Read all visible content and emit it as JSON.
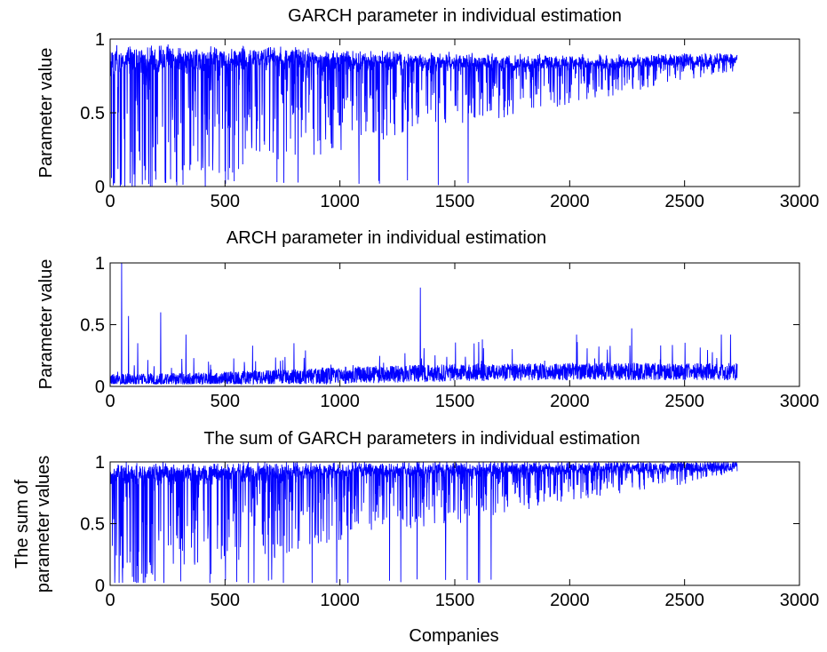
{
  "figure": {
    "line_color": "#0000ff",
    "axis_color": "#000000",
    "background": "#ffffff"
  },
  "chart_data": [
    {
      "type": "line",
      "title": "GARCH parameter in individual estimation",
      "xlabel": "",
      "ylabel_lines": [
        "Parameter value"
      ],
      "xlim": [
        0,
        3000
      ],
      "ylim": [
        0,
        1
      ],
      "x_ticks": [
        0,
        500,
        1000,
        1500,
        2000,
        2500,
        3000
      ],
      "x_tick_labels": [
        "0",
        "500",
        "1000",
        "1500",
        "2000",
        "2500",
        "3000"
      ],
      "y_ticks": [
        0,
        0.5,
        1
      ],
      "y_tick_labels": [
        "0",
        "0.5",
        "1"
      ],
      "grid": false,
      "n_points": 2730,
      "profile": [
        [
          0,
          0.93
        ],
        [
          700,
          0.92
        ],
        [
          1200,
          0.89
        ],
        [
          1800,
          0.86
        ],
        [
          2300,
          0.86
        ],
        [
          2730,
          0.87
        ]
      ],
      "spread": [
        [
          0,
          0.55
        ],
        [
          500,
          0.45
        ],
        [
          1000,
          0.35
        ],
        [
          1500,
          0.25
        ],
        [
          2000,
          0.16
        ],
        [
          2500,
          0.08
        ],
        [
          2730,
          0.05
        ]
      ],
      "max_value": 0.97,
      "floor": 0
    },
    {
      "type": "line",
      "title": "ARCH parameter in individual estimation",
      "xlabel": "",
      "ylabel_lines": [
        "Parameter value"
      ],
      "xlim": [
        0,
        3000
      ],
      "ylim": [
        0,
        1
      ],
      "x_ticks": [
        0,
        500,
        1000,
        1500,
        2000,
        2500,
        3000
      ],
      "x_tick_labels": [
        "0",
        "500",
        "1000",
        "1500",
        "2000",
        "2500",
        "3000"
      ],
      "y_ticks": [
        0,
        0.5,
        1
      ],
      "y_tick_labels": [
        "0",
        "0.5",
        "1"
      ],
      "grid": false,
      "n_points": 2730,
      "profile": [
        [
          0,
          0.05
        ],
        [
          500,
          0.06
        ],
        [
          1000,
          0.09
        ],
        [
          1500,
          0.11
        ],
        [
          2000,
          0.12
        ],
        [
          2500,
          0.12
        ],
        [
          2730,
          0.12
        ]
      ],
      "spread": [
        [
          0,
          0.07
        ],
        [
          1000,
          0.1
        ],
        [
          2730,
          0.1
        ]
      ],
      "spikes": [
        [
          50,
          1.0
        ],
        [
          80,
          0.57
        ],
        [
          120,
          0.35
        ],
        [
          220,
          0.6
        ],
        [
          330,
          0.42
        ],
        [
          620,
          0.33
        ],
        [
          800,
          0.35
        ],
        [
          1350,
          0.8
        ],
        [
          1620,
          0.38
        ],
        [
          2030,
          0.42
        ],
        [
          2270,
          0.47
        ],
        [
          2660,
          0.42
        ],
        [
          2700,
          0.42
        ]
      ],
      "max_value": 1,
      "floor": 0.02
    },
    {
      "type": "line",
      "title": "The sum of GARCH parameters in individual estimation",
      "xlabel": "Companies",
      "ylabel_lines": [
        "The sum of",
        "parameter values"
      ],
      "xlim": [
        0,
        3000
      ],
      "ylim": [
        0,
        1
      ],
      "x_ticks": [
        0,
        500,
        1000,
        1500,
        2000,
        2500,
        3000
      ],
      "x_tick_labels": [
        "0",
        "500",
        "1000",
        "1500",
        "2000",
        "2500",
        "3000"
      ],
      "y_ticks": [
        0,
        0.5,
        1
      ],
      "y_tick_labels": [
        "0",
        "0.5",
        "1"
      ],
      "grid": false,
      "n_points": 2730,
      "profile": [
        [
          0,
          0.97
        ],
        [
          1000,
          0.97
        ],
        [
          2000,
          0.97
        ],
        [
          2730,
          0.97
        ]
      ],
      "spread": [
        [
          0,
          0.55
        ],
        [
          500,
          0.45
        ],
        [
          1000,
          0.32
        ],
        [
          1500,
          0.25
        ],
        [
          2000,
          0.15
        ],
        [
          2500,
          0.08
        ],
        [
          2730,
          0.03
        ]
      ],
      "max_value": 1,
      "floor": 0.02
    }
  ]
}
